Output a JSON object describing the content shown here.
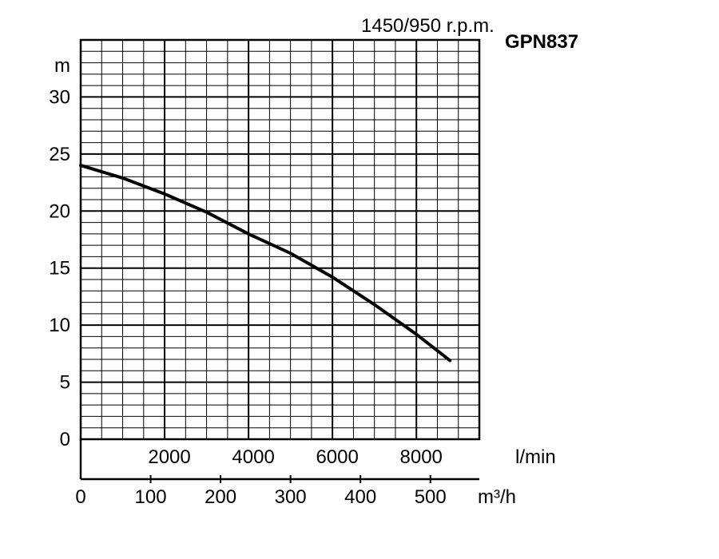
{
  "chart_data": {
    "type": "line",
    "title": "GPN837",
    "subtitle": "1450/950 r.p.m.",
    "ylabel": "m",
    "xlabel_primary": "l/min",
    "xlabel_secondary": "m³/h",
    "ylim": [
      0,
      35
    ],
    "xlim_lpm": [
      0,
      9500
    ],
    "grid": true,
    "y_ticks": [
      "0",
      "5",
      "10",
      "15",
      "20",
      "25",
      "30"
    ],
    "x_ticks_lpm": [
      "2000",
      "4000",
      "6000",
      "8000"
    ],
    "x_ticks_m3h": [
      "0",
      "100",
      "200",
      "300",
      "400",
      "500"
    ],
    "series": [
      {
        "x": [
          0,
          1000,
          2000,
          3000,
          4000,
          5000,
          6000,
          7000,
          8000,
          8800
        ],
        "y": [
          24.0,
          22.9,
          21.5,
          19.9,
          18.0,
          16.3,
          14.2,
          11.8,
          9.2,
          6.9
        ]
      }
    ]
  }
}
